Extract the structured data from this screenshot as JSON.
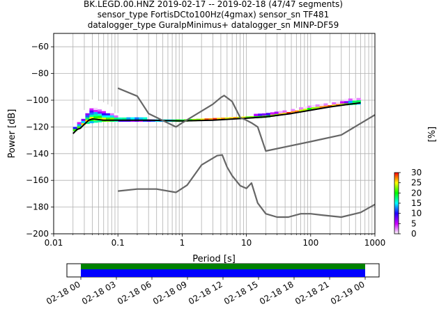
{
  "title_lines": [
    "BK.LEGD.00.HNZ   2019-02-17 -- 2019-02-18  (47/47 segments)",
    "sensor_type FortisDCto100Hz(4gmax) sensor_sn TF481",
    "datalogger_type GuralpMinimus+ datalogger_sn MINP-DF59"
  ],
  "chart_data": {
    "type": "heatmap",
    "xlabel": "Period [s]",
    "ylabel": "Power [dB]",
    "x_scale": "log",
    "xlim": [
      0.01,
      1000
    ],
    "ylim": [
      -200,
      -50
    ],
    "x_ticks": [
      0.01,
      0.1,
      1,
      10,
      100,
      1000
    ],
    "x_tick_labels": [
      "0.01",
      "0.1",
      "1",
      "10",
      "100",
      "1000"
    ],
    "y_ticks": [
      -200,
      -180,
      -160,
      -140,
      -120,
      -100,
      -80,
      -60
    ],
    "y_tick_labels": [
      "−200",
      "−180",
      "−160",
      "−140",
      "−120",
      "−100",
      "−80",
      "−60"
    ],
    "grid": true,
    "colorbar": {
      "label": "[%]",
      "range": [
        0,
        30
      ],
      "ticks": [
        0,
        5,
        10,
        15,
        20,
        25,
        30
      ],
      "tick_labels": [
        "0",
        "5",
        "10",
        "15",
        "20",
        "25",
        "30"
      ],
      "colors": [
        "#ffffff",
        "#cc00ff",
        "#2200ff",
        "#00ffff",
        "#00ff00",
        "#ffff00",
        "#ff0000"
      ]
    },
    "psd_band": [
      [
        0.02,
        -124,
        -118
      ],
      [
        0.025,
        -121,
        -112
      ],
      [
        0.03,
        -118,
        -108
      ],
      [
        0.04,
        -117,
        -100
      ],
      [
        0.06,
        -116,
        -102
      ],
      [
        0.08,
        -116,
        -106
      ],
      [
        0.1,
        -116,
        -112
      ],
      [
        0.2,
        -116,
        -114
      ],
      [
        0.5,
        -116,
        -115
      ],
      [
        1,
        -116,
        -115
      ],
      [
        3,
        -115,
        -114
      ],
      [
        8,
        -114,
        -113
      ],
      [
        20,
        -113,
        -111
      ],
      [
        50,
        -110,
        -108
      ],
      [
        100,
        -107,
        -104
      ],
      [
        300,
        -104,
        -101
      ],
      [
        600,
        -103,
        -99
      ]
    ],
    "series": [
      {
        "x": [
          0.02,
          0.023,
          0.026,
          0.03,
          0.035,
          0.04,
          0.06,
          0.1,
          0.3,
          1,
          3,
          10,
          20,
          50,
          100,
          200,
          400,
          600
        ],
        "y": [
          -125,
          -122,
          -121,
          -118,
          -115,
          -114,
          -115,
          -115,
          -115,
          -115.5,
          -115,
          -113.5,
          -112.5,
          -110,
          -107.5,
          -105,
          -103,
          -102
        ]
      },
      {
        "x": [
          0.1,
          0.2,
          0.3,
          0.8,
          1,
          3,
          4,
          4.5,
          6,
          8,
          10,
          12,
          15,
          20,
          50,
          100,
          300,
          1000
        ],
        "y": [
          -91,
          -97,
          -110,
          -120,
          -117,
          -103,
          -98,
          -96.5,
          -101,
          -113,
          -115,
          -117,
          -120,
          -138,
          -134,
          -131,
          -126,
          -111
        ]
      },
      {
        "x": [
          0.1,
          0.2,
          0.4,
          0.8,
          1.2,
          2,
          3.5,
          4.2,
          5,
          6,
          8,
          10,
          12,
          15,
          20,
          30,
          45,
          70,
          100,
          150,
          300,
          600,
          1000
        ],
        "y": [
          -168,
          -166.5,
          -166.5,
          -169,
          -163.5,
          -148.5,
          -141.5,
          -141,
          -150,
          -156.5,
          -164,
          -166,
          -162,
          -177,
          -185,
          -187.5,
          -187.5,
          -185,
          -185,
          -186,
          -187.5,
          -184,
          -178
        ]
      }
    ]
  },
  "availability": {
    "tick_labels": [
      "02-18 00",
      "02-18 03",
      "02-18 06",
      "02-18 09",
      "02-18 12",
      "02-18 15",
      "02-18 18",
      "02-18 21",
      "02-19 00"
    ],
    "data_color": "#0000ff",
    "gap_color": "#008000"
  },
  "colors": {
    "model_line": "#666666",
    "mean_line": "#000000",
    "grid": "#b0b0b0"
  }
}
